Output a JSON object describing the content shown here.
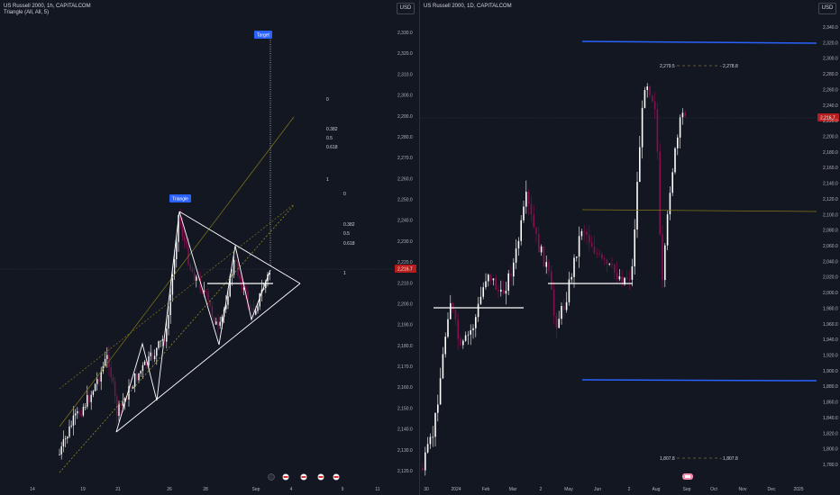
{
  "left": {
    "legend_line1": "US Russell 2000, 1h, CAPITALCOM",
    "legend_line2": "Triangle (All, All, 5)",
    "currency": "USD",
    "price_ticks": [
      "2,330.0",
      "2,320.0",
      "2,310.0",
      "2,300.0",
      "2,290.0",
      "2,280.0",
      "2,270.0",
      "2,260.0",
      "2,250.0",
      "2,240.0",
      "2,230.0",
      "2,220.0",
      "2,210.0",
      "2,200.0",
      "2,190.0",
      "2,180.0",
      "2,170.0",
      "2,160.0",
      "2,150.0",
      "2,140.0",
      "2,130.0",
      "2,120.0"
    ],
    "time_ticks": [
      "14",
      "19",
      "21",
      "26",
      "28",
      "Sep",
      "4",
      "9",
      "11"
    ],
    "current_price": "2,216.7",
    "target_label": "Target",
    "triangle_label": "Triangle",
    "fib1": [
      "0",
      "0.382",
      "0.5",
      "0.618",
      "1"
    ],
    "fib2": [
      "0",
      "0.382",
      "0.5",
      "0.618",
      "1"
    ]
  },
  "right": {
    "legend_line1": "US Russell 2000, 1D, CAPITALCOM",
    "currency": "USD",
    "price_ticks": [
      "2,340.0",
      "2,320.0",
      "2,300.0",
      "2,280.0",
      "2,260.0",
      "2,240.0",
      "2,220.0",
      "2,200.0",
      "2,180.0",
      "2,160.0",
      "2,140.0",
      "2,120.0",
      "2,100.0",
      "2,080.0",
      "2,060.0",
      "2,040.0",
      "2,020.0",
      "2,000.0",
      "1,980.0",
      "1,960.0",
      "1,940.0",
      "1,920.0",
      "1,900.0",
      "1,880.0",
      "1,860.0",
      "1,840.0",
      "1,820.0",
      "1,800.0",
      "1,780.0"
    ],
    "time_ticks": [
      "30",
      "2024",
      "Feb",
      "Mar",
      "2",
      "May",
      "Jun",
      "2",
      "Aug",
      "Sep",
      "Oct",
      "Nov",
      "Dec",
      "2025"
    ],
    "current_price": "2,216.7",
    "upper_level_left": "2,279.5",
    "upper_level_right": "2,278.8",
    "lower_level_left": "1,807.8",
    "lower_level_right": "1,807.8"
  },
  "colors": {
    "background": "#131722",
    "bull": "#ffffff",
    "bear": "#880e4f",
    "blue_line": "#2962ff",
    "olive": "#827717",
    "price_label": "#b71c1c"
  }
}
